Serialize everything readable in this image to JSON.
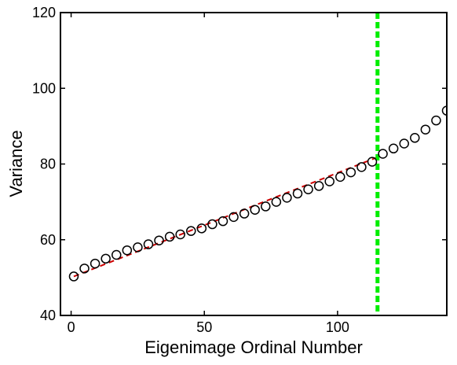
{
  "chart_data": {
    "type": "scatter",
    "title": "",
    "xlabel": "Eigenimage Ordinal Number",
    "ylabel": "Variance",
    "xlim": [
      -4,
      141
    ],
    "ylim": [
      40,
      120
    ],
    "xticks": [
      0,
      50,
      100
    ],
    "yticks": [
      40,
      60,
      80,
      100,
      120
    ],
    "grid": false,
    "legend": "none",
    "series": [
      {
        "marker": "open-circle",
        "color": "#000000",
        "x": [
          1,
          5,
          9,
          13,
          17,
          21,
          25,
          29,
          33,
          37,
          41,
          45,
          49,
          53,
          57,
          61,
          65,
          69,
          73,
          77,
          81,
          85,
          89,
          93,
          97,
          101,
          105,
          109,
          113,
          117,
          121,
          125,
          129,
          133,
          137,
          141
        ],
        "y": [
          50.3,
          52.4,
          53.7,
          55.0,
          56.0,
          57.2,
          58.0,
          58.8,
          59.8,
          60.8,
          61.4,
          62.3,
          63.0,
          64.1,
          64.9,
          66.0,
          66.9,
          67.9,
          68.8,
          70.0,
          71.1,
          72.2,
          73.3,
          74.2,
          75.4,
          76.6,
          77.8,
          79.2,
          80.6,
          82.7,
          84.1,
          85.4,
          86.9,
          89.1,
          91.5,
          94.1
        ]
      }
    ],
    "fit_line": {
      "style": "dashed",
      "color": "#cc0000",
      "x": [
        1,
        115
      ],
      "y": [
        50.3,
        81.8
      ]
    },
    "vertical_line": {
      "style": "dotted",
      "color": "#00ee00",
      "x": 115
    }
  }
}
